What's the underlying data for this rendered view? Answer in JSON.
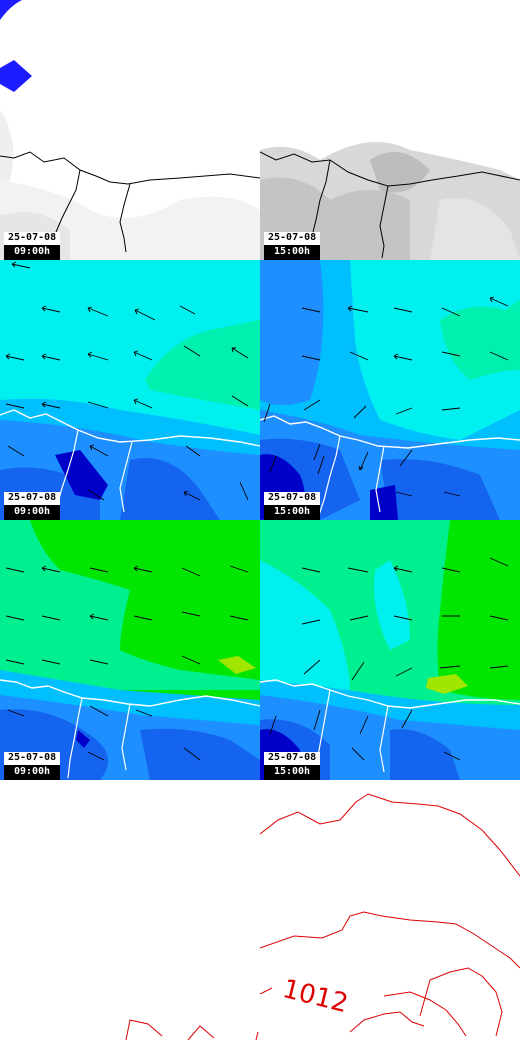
{
  "panels": [
    {
      "row": 0,
      "col": 0,
      "field": "cloud-cover",
      "date": "25-07-08",
      "time": "09:00h"
    },
    {
      "row": 0,
      "col": 1,
      "field": "cloud-cover",
      "date": "25-07-08",
      "time": "15:00h"
    },
    {
      "row": 1,
      "col": 0,
      "field": "wind-speed-surface",
      "date": "25-07-08",
      "time": "09:00h"
    },
    {
      "row": 1,
      "col": 1,
      "field": "wind-speed-surface",
      "date": "25-07-08",
      "time": "15:00h"
    },
    {
      "row": 2,
      "col": 0,
      "field": "wind-speed-upper",
      "date": "25-07-08",
      "time": "09:00h"
    },
    {
      "row": 2,
      "col": 1,
      "field": "wind-speed-upper",
      "date": "25-07-08",
      "time": "15:00h"
    },
    {
      "row": 3,
      "col": 0,
      "field": "sea-level-pressure",
      "date": "",
      "time": ""
    },
    {
      "row": 3,
      "col": 1,
      "field": "sea-level-pressure",
      "date": "",
      "time": ""
    }
  ],
  "isobar_labels": [
    "1012"
  ],
  "colors": {
    "coast": "#ffffff",
    "coast_on_white": "#000000",
    "isobar": "#dd0000",
    "cyan": "#00f0f0",
    "light_blue": "#00bfff",
    "mid_blue": "#1e8fff",
    "blue": "#1464f0",
    "dark_blue": "#0000c8",
    "green": "#00e600",
    "teal_green": "#00f090",
    "yellow_green": "#a0e600"
  }
}
